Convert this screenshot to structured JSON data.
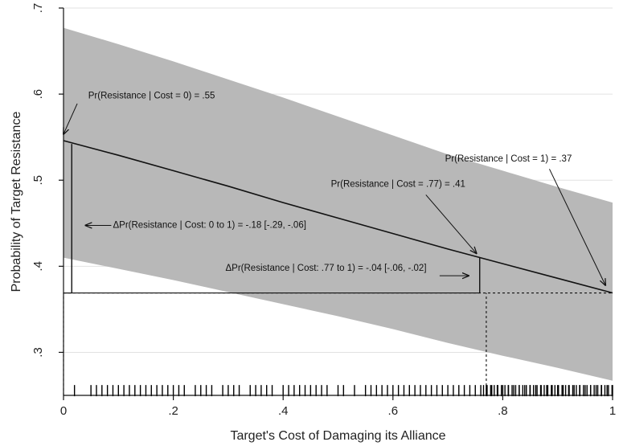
{
  "chart_data": {
    "type": "line",
    "xlabel": "Target's Cost of Damaging its Alliance",
    "ylabel": "Probability of Target Resistance",
    "xlim": [
      0,
      1
    ],
    "ylim": [
      0.25,
      0.7
    ],
    "x_ticks": [
      0,
      0.2,
      0.4,
      0.6,
      0.8,
      1
    ],
    "x_tick_labels": [
      "0",
      ".2",
      ".4",
      ".6",
      ".8",
      "1"
    ],
    "y_ticks": [
      0.3,
      0.4,
      0.5,
      0.6,
      0.7
    ],
    "y_tick_labels": [
      ".3",
      ".4",
      ".5",
      ".6",
      ".7"
    ],
    "grid": true,
    "series": [
      {
        "x": [
          0,
          0.1,
          0.2,
          0.3,
          0.4,
          0.5,
          0.6,
          0.7,
          0.8,
          0.9,
          1.0
        ],
        "y": [
          0.546,
          0.529,
          0.511,
          0.493,
          0.474,
          0.456,
          0.438,
          0.42,
          0.403,
          0.386,
          0.369
        ],
        "ci_upper": [
          0.677,
          0.658,
          0.638,
          0.617,
          0.596,
          0.574,
          0.552,
          0.53,
          0.511,
          0.492,
          0.474
        ],
        "ci_lower": [
          0.41,
          0.397,
          0.384,
          0.37,
          0.356,
          0.342,
          0.327,
          0.311,
          0.296,
          0.282,
          0.267
        ]
      }
    ],
    "reference_lines": {
      "baseline_y": 0.369,
      "vertical_x": [
        0,
        0.77
      ]
    },
    "difference_brackets": [
      {
        "x": 0.015,
        "y_from": 0.369,
        "y_to": 0.542
      },
      {
        "x": 0.758,
        "y_from": 0.369,
        "y_to": 0.41
      }
    ],
    "rug_x": [
      0.02,
      0.05,
      0.06,
      0.07,
      0.08,
      0.09,
      0.1,
      0.11,
      0.12,
      0.13,
      0.14,
      0.15,
      0.16,
      0.17,
      0.18,
      0.19,
      0.2,
      0.21,
      0.22,
      0.24,
      0.25,
      0.26,
      0.27,
      0.29,
      0.3,
      0.31,
      0.32,
      0.34,
      0.35,
      0.36,
      0.37,
      0.38,
      0.4,
      0.41,
      0.42,
      0.43,
      0.44,
      0.45,
      0.46,
      0.47,
      0.48,
      0.5,
      0.51,
      0.53,
      0.55,
      0.56,
      0.57,
      0.58,
      0.59,
      0.6,
      0.61,
      0.62,
      0.63,
      0.64,
      0.65,
      0.66,
      0.67,
      0.68,
      0.69,
      0.7,
      0.71,
      0.72,
      0.73,
      0.74,
      0.75,
      0.76,
      0.77,
      0.78,
      0.79,
      0.8,
      0.81,
      0.82,
      0.83,
      0.84,
      0.85,
      0.86,
      0.87,
      0.88,
      0.89,
      0.9,
      0.91,
      0.92,
      0.93,
      0.94,
      0.95,
      0.96,
      0.97,
      0.98,
      0.99,
      1.0
    ],
    "annotations": [
      {
        "id": "ann1",
        "text": "Pr(Resistance | Cost = 0) = .55",
        "tx": 0.045,
        "ty": 0.595,
        "ax": 0.025,
        "ay": 0.589,
        "bx": 0.0,
        "by": 0.5535
      },
      {
        "id": "ann2",
        "text": "Pr(Resistance | Cost = 1) = .37",
        "tx": 0.695,
        "ty": 0.5215,
        "ax": 0.885,
        "ay": 0.513,
        "bx": 0.987,
        "by": 0.378
      },
      {
        "id": "ann3",
        "text": "Pr(Resistance | Cost = .77) = .41",
        "tx": 0.487,
        "ty": 0.4925,
        "ax": 0.66,
        "ay": 0.483,
        "bx": 0.752,
        "by": 0.415
      },
      {
        "id": "ann4",
        "text": "ΔPr(Resistance | Cost: 0 to 1) = -.18 [-.29, -.06]",
        "tx": 0.09,
        "ty": 0.4445,
        "ax": 0.087,
        "ay": 0.4475,
        "bx": 0.04,
        "by": 0.4475
      },
      {
        "id": "ann5",
        "text": "ΔPr(Resistance | Cost: .77 to 1) = -.04 [-.06, -.02]",
        "tx": 0.295,
        "ty": 0.3945,
        "ax": 0.685,
        "ay": 0.389,
        "bx": 0.738,
        "by": 0.389
      }
    ]
  }
}
